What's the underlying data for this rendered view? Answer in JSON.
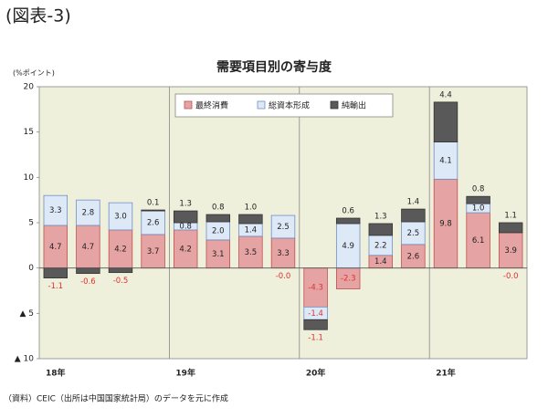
{
  "header": "(図表-3)",
  "source": "（資料）CEIC（出所は中国国家統計局）のデータを元に作成",
  "chart_data": {
    "type": "stacked_bar",
    "title": "需要項目別の寄与度",
    "y_label": "(%ポイント)",
    "categories": [
      "18年",
      null,
      null,
      null,
      "19年",
      null,
      null,
      null,
      "20年",
      null,
      null,
      null,
      "21年",
      null,
      null
    ],
    "series": [
      {
        "name": "最終消費",
        "color": "#e6a3a3",
        "edge_color": "#c0504d",
        "values": [
          4.7,
          4.7,
          4.2,
          3.7,
          4.2,
          3.1,
          3.5,
          3.3,
          -4.3,
          -2.3,
          1.4,
          2.6,
          9.8,
          6.1,
          3.9
        ],
        "value_labels": [
          "4.7",
          "4.7",
          "4.2",
          "3.7",
          "4.2",
          "3.1",
          "3.5",
          "3.3",
          "-4.3",
          "-2.3",
          "1.4",
          "2.6",
          "9.8",
          "6.1",
          "3.9"
        ]
      },
      {
        "name": "総資本形成",
        "color": "#dde9f7",
        "edge_color": "#6f8fc5",
        "values": [
          3.3,
          2.8,
          3.0,
          2.6,
          0.8,
          2.0,
          1.4,
          2.5,
          -1.4,
          4.9,
          2.2,
          2.5,
          4.1,
          1.0,
          0
        ],
        "value_labels": [
          "3.3",
          "2.8",
          "3.0",
          "2.6",
          "0.8",
          "2.0",
          "1.4",
          "2.5",
          "-1.4",
          "4.9",
          "2.2",
          "2.5",
          "4.1",
          "1.0",
          "-0.0"
        ]
      },
      {
        "name": "純輸出",
        "color": "#595959",
        "edge_color": "#333333",
        "values": [
          -1.1,
          -0.6,
          -0.5,
          0.1,
          1.3,
          0.8,
          1.0,
          0,
          -1.1,
          0.6,
          1.3,
          1.4,
          4.4,
          0.8,
          1.1
        ],
        "value_labels": [
          "-1.1",
          "-0.6",
          "-0.5",
          "0.1",
          "1.3",
          "0.8",
          "1.0",
          "-0.0",
          "-1.1",
          "0.6",
          "1.3",
          "1.4",
          "4.4",
          "0.8",
          "1.1"
        ]
      }
    ],
    "ylim": [
      -10,
      20
    ],
    "yticks": [
      {
        "value": -10,
        "label": "▲ 10"
      },
      {
        "value": -5,
        "label": "▲ 5"
      },
      0,
      5,
      10,
      15,
      20
    ],
    "grid": false,
    "year_dividers": true,
    "legend": "top"
  }
}
